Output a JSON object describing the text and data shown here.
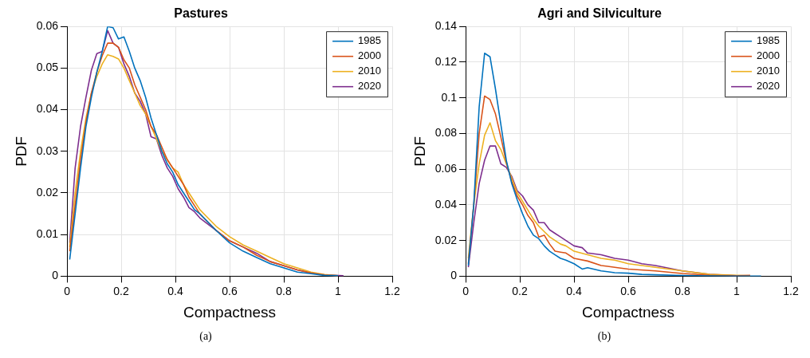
{
  "chart_data": [
    {
      "type": "line",
      "title": "Pastures",
      "xlabel": "Compactness",
      "ylabel": "PDF",
      "xlim": [
        0,
        1.2
      ],
      "xticks": [
        0,
        0.2,
        0.4,
        0.6,
        0.8,
        1,
        1.2
      ],
      "ylim": [
        0,
        0.06
      ],
      "yticks": [
        0,
        0.01,
        0.02,
        0.03,
        0.04,
        0.05,
        0.06
      ],
      "grid": true,
      "legend": "top right",
      "annotations": [
        "(a)"
      ],
      "series": [
        {
          "name": "1985",
          "color": "#0072bd",
          "x": [
            0.01,
            0.03,
            0.05,
            0.07,
            0.09,
            0.11,
            0.13,
            0.15,
            0.17,
            0.19,
            0.21,
            0.23,
            0.25,
            0.27,
            0.29,
            0.31,
            0.33,
            0.35,
            0.37,
            0.39,
            0.41,
            0.43,
            0.45,
            0.47,
            0.49,
            0.55,
            0.6,
            0.65,
            0.7,
            0.75,
            0.8,
            0.85,
            0.9,
            0.95,
            1.0
          ],
          "values": [
            0.004,
            0.015,
            0.026,
            0.036,
            0.043,
            0.049,
            0.054,
            0.06,
            0.0597,
            0.057,
            0.0575,
            0.054,
            0.05,
            0.047,
            0.043,
            0.038,
            0.034,
            0.03,
            0.027,
            0.025,
            0.022,
            0.02,
            0.018,
            0.016,
            0.015,
            0.011,
            0.008,
            0.006,
            0.0045,
            0.003,
            0.002,
            0.001,
            0.0006,
            0.0002,
            0.0001
          ]
        },
        {
          "name": "2000",
          "color": "#d95319",
          "x": [
            0.01,
            0.03,
            0.05,
            0.07,
            0.09,
            0.11,
            0.13,
            0.15,
            0.17,
            0.19,
            0.21,
            0.23,
            0.25,
            0.27,
            0.29,
            0.31,
            0.33,
            0.35,
            0.37,
            0.39,
            0.41,
            0.43,
            0.45,
            0.47,
            0.49,
            0.55,
            0.6,
            0.65,
            0.7,
            0.75,
            0.8,
            0.85,
            0.9,
            0.95,
            1.0
          ],
          "values": [
            0.006,
            0.017,
            0.028,
            0.037,
            0.044,
            0.049,
            0.053,
            0.056,
            0.056,
            0.055,
            0.052,
            0.05,
            0.046,
            0.043,
            0.04,
            0.036,
            0.034,
            0.031,
            0.028,
            0.026,
            0.024,
            0.022,
            0.019,
            0.017,
            0.015,
            0.011,
            0.0085,
            0.007,
            0.005,
            0.0035,
            0.0025,
            0.0015,
            0.0008,
            0.0003,
            0.0001
          ]
        },
        {
          "name": "2010",
          "color": "#edb120",
          "x": [
            0.01,
            0.03,
            0.05,
            0.07,
            0.09,
            0.11,
            0.13,
            0.15,
            0.17,
            0.19,
            0.21,
            0.23,
            0.25,
            0.27,
            0.29,
            0.31,
            0.33,
            0.35,
            0.37,
            0.39,
            0.41,
            0.43,
            0.45,
            0.47,
            0.49,
            0.55,
            0.6,
            0.65,
            0.7,
            0.75,
            0.8,
            0.85,
            0.9,
            0.95,
            1.0
          ],
          "values": [
            0.007,
            0.02,
            0.03,
            0.038,
            0.044,
            0.048,
            0.051,
            0.0532,
            0.0528,
            0.0522,
            0.05,
            0.047,
            0.044,
            0.041,
            0.039,
            0.036,
            0.033,
            0.03,
            0.028,
            0.026,
            0.025,
            0.022,
            0.02,
            0.018,
            0.016,
            0.012,
            0.0095,
            0.0075,
            0.006,
            0.0045,
            0.003,
            0.002,
            0.001,
            0.0004,
            0.0001
          ]
        },
        {
          "name": "2020",
          "color": "#7e2f8e",
          "x": [
            0.01,
            0.03,
            0.05,
            0.07,
            0.09,
            0.11,
            0.13,
            0.15,
            0.17,
            0.19,
            0.21,
            0.23,
            0.25,
            0.27,
            0.29,
            0.31,
            0.33,
            0.35,
            0.37,
            0.39,
            0.41,
            0.43,
            0.45,
            0.47,
            0.49,
            0.55,
            0.6,
            0.65,
            0.7,
            0.75,
            0.8,
            0.85,
            0.9,
            0.95,
            1.02
          ],
          "values": [
            0.008,
            0.026,
            0.036,
            0.043,
            0.0495,
            0.0535,
            0.054,
            0.059,
            0.056,
            0.055,
            0.051,
            0.048,
            0.044,
            0.042,
            0.039,
            0.0335,
            0.033,
            0.029,
            0.026,
            0.024,
            0.021,
            0.019,
            0.0165,
            0.0155,
            0.014,
            0.011,
            0.0085,
            0.007,
            0.0055,
            0.0035,
            0.0025,
            0.0015,
            0.0008,
            0.0003,
            0.0001
          ]
        }
      ]
    },
    {
      "type": "line",
      "title": "Agri and Silviculture",
      "xlabel": "Compactness",
      "ylabel": "PDF",
      "xlim": [
        0,
        1.2
      ],
      "xticks": [
        0,
        0.2,
        0.4,
        0.6,
        0.8,
        1,
        1.2
      ],
      "ylim": [
        0,
        0.14
      ],
      "yticks": [
        0,
        0.02,
        0.04,
        0.06,
        0.08,
        0.1,
        0.12,
        0.14
      ],
      "grid": true,
      "legend": "top right",
      "annotations": [
        "(b)"
      ],
      "series": [
        {
          "name": "1985",
          "color": "#0072bd",
          "x": [
            0.01,
            0.03,
            0.05,
            0.07,
            0.09,
            0.11,
            0.13,
            0.15,
            0.17,
            0.19,
            0.21,
            0.23,
            0.25,
            0.27,
            0.29,
            0.31,
            0.33,
            0.35,
            0.37,
            0.4,
            0.43,
            0.45,
            0.5,
            0.55,
            0.6,
            0.65,
            0.7,
            0.8,
            0.9,
            1.0,
            1.09
          ],
          "values": [
            0.006,
            0.04,
            0.095,
            0.125,
            0.123,
            0.105,
            0.085,
            0.065,
            0.052,
            0.043,
            0.035,
            0.028,
            0.023,
            0.021,
            0.017,
            0.014,
            0.012,
            0.01,
            0.009,
            0.007,
            0.004,
            0.0048,
            0.003,
            0.002,
            0.0017,
            0.001,
            0.0008,
            0.0004,
            0.0002,
            0.0001,
            0
          ]
        },
        {
          "name": "2000",
          "color": "#d95319",
          "x": [
            0.01,
            0.03,
            0.05,
            0.07,
            0.09,
            0.11,
            0.13,
            0.15,
            0.17,
            0.19,
            0.21,
            0.23,
            0.25,
            0.27,
            0.29,
            0.31,
            0.33,
            0.35,
            0.37,
            0.4,
            0.45,
            0.5,
            0.55,
            0.6,
            0.7,
            0.8,
            0.9,
            1.0,
            1.05
          ],
          "values": [
            0.007,
            0.04,
            0.08,
            0.101,
            0.099,
            0.091,
            0.078,
            0.064,
            0.053,
            0.045,
            0.04,
            0.034,
            0.03,
            0.022,
            0.023,
            0.018,
            0.014,
            0.0135,
            0.013,
            0.01,
            0.0085,
            0.006,
            0.005,
            0.004,
            0.003,
            0.0015,
            0.0005,
            0.0003,
            0.0005
          ]
        },
        {
          "name": "2010",
          "color": "#edb120",
          "x": [
            0.01,
            0.03,
            0.05,
            0.07,
            0.09,
            0.11,
            0.13,
            0.15,
            0.17,
            0.19,
            0.21,
            0.23,
            0.25,
            0.27,
            0.29,
            0.31,
            0.33,
            0.35,
            0.37,
            0.4,
            0.45,
            0.5,
            0.55,
            0.6,
            0.7,
            0.8,
            0.9,
            1.0,
            1.05
          ],
          "values": [
            0.01,
            0.04,
            0.063,
            0.079,
            0.086,
            0.076,
            0.071,
            0.063,
            0.055,
            0.047,
            0.042,
            0.037,
            0.032,
            0.028,
            0.025,
            0.022,
            0.02,
            0.018,
            0.017,
            0.014,
            0.012,
            0.01,
            0.009,
            0.007,
            0.005,
            0.003,
            0.001,
            0.0005,
            0.0003
          ]
        },
        {
          "name": "2020",
          "color": "#7e2f8e",
          "x": [
            0.01,
            0.03,
            0.05,
            0.07,
            0.09,
            0.11,
            0.13,
            0.15,
            0.17,
            0.19,
            0.21,
            0.23,
            0.25,
            0.27,
            0.29,
            0.31,
            0.33,
            0.35,
            0.37,
            0.4,
            0.43,
            0.45,
            0.5,
            0.55,
            0.6,
            0.65,
            0.7,
            0.8,
            0.9,
            1.0
          ],
          "values": [
            0.005,
            0.03,
            0.052,
            0.065,
            0.073,
            0.073,
            0.063,
            0.061,
            0.056,
            0.048,
            0.045,
            0.04,
            0.037,
            0.03,
            0.03,
            0.026,
            0.024,
            0.022,
            0.02,
            0.017,
            0.016,
            0.013,
            0.012,
            0.01,
            0.009,
            0.007,
            0.006,
            0.003,
            0.001,
            0.0003
          ]
        }
      ]
    }
  ]
}
